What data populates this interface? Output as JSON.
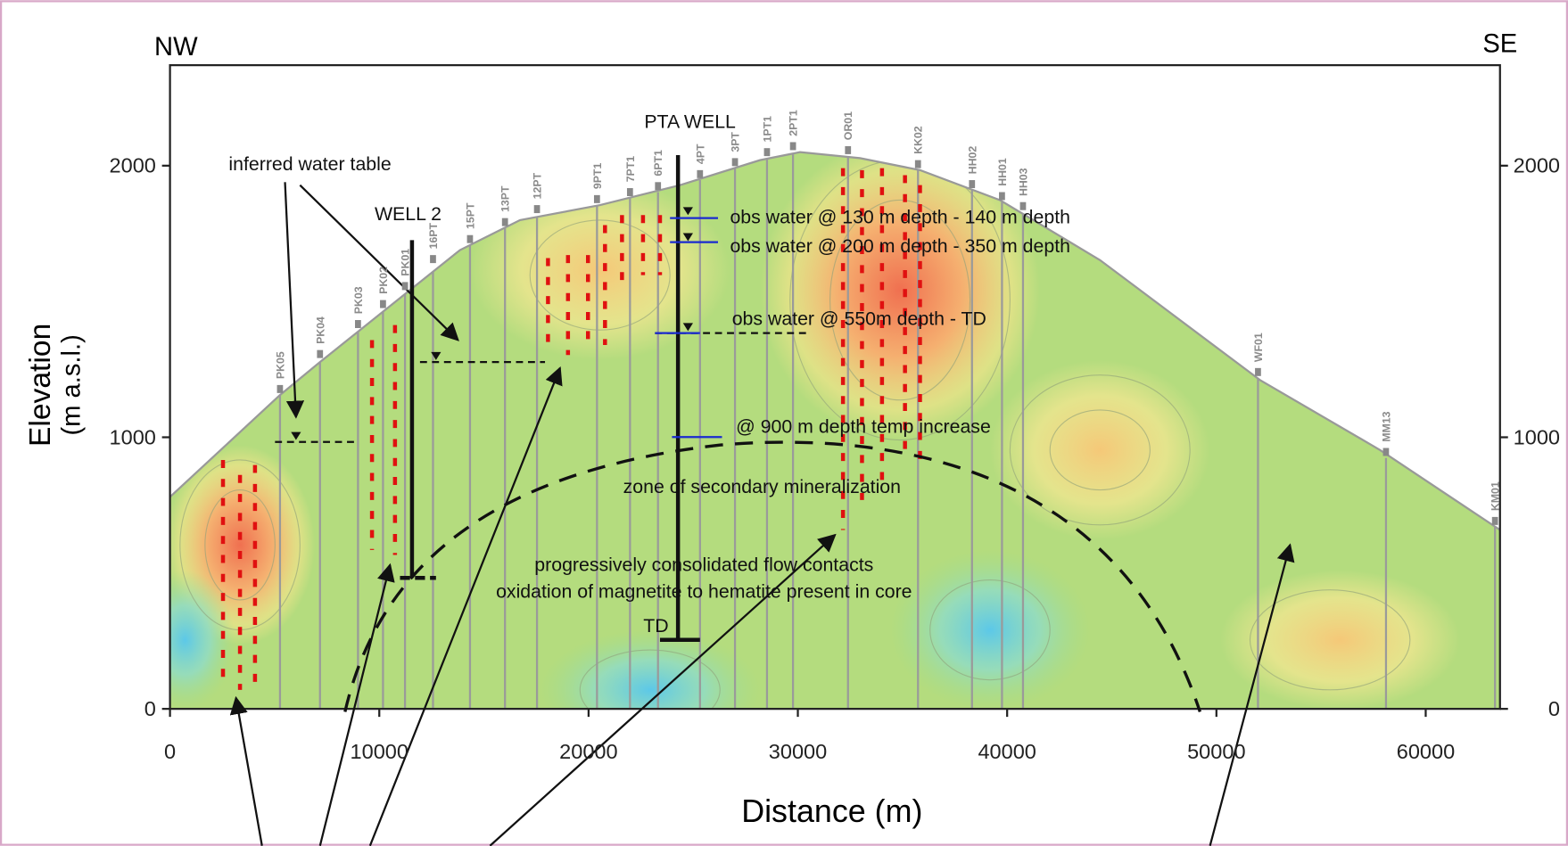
{
  "chart_data": {
    "type": "cross-section",
    "direction_left": "NW",
    "direction_right": "SE",
    "x_label": "Distance (m)",
    "y_label": [
      "Elevation",
      "(m a.s.l.)"
    ],
    "xlim": [
      0,
      63550
    ],
    "ylim": [
      0,
      2370
    ],
    "xticks": [
      0,
      10000,
      20000,
      30000,
      40000,
      50000,
      60000
    ],
    "yticks": [
      0,
      1000,
      2000
    ],
    "well_labels": [
      "PK05",
      "PK04",
      "PK03",
      "PK02",
      "PK01",
      "16PT",
      "15PT",
      "13PT",
      "12PT",
      "9PT1",
      "7PT1",
      "6PT1",
      "4PT",
      "3PT",
      "1PT1",
      "2PT1",
      "OR01",
      "KK02",
      "HH02",
      "HH01",
      "HH03",
      "WF01",
      "MM13",
      "KM01"
    ],
    "annotations": {
      "pta_well": "PTA WELL",
      "well_2": "WELL 2",
      "water_table": "inferred water table",
      "obs_1": "obs water @ 130 m depth - 140 m depth",
      "obs_2": "obs water @ 200 m depth - 350 m depth",
      "obs_3": "obs water @ 550m depth - TD",
      "temp": "@ 900 m depth temp increase",
      "zone": "zone of secondary mineralization",
      "flow": "progressively consolidated flow contacts",
      "oxidation": "oxidation of magnetite to hematite present in core",
      "td": "TD"
    }
  }
}
